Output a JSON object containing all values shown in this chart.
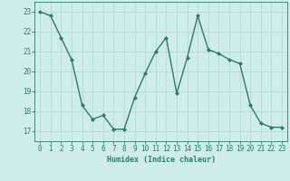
{
  "x": [
    0,
    1,
    2,
    3,
    4,
    5,
    6,
    7,
    8,
    9,
    10,
    11,
    12,
    13,
    14,
    15,
    16,
    17,
    18,
    19,
    20,
    21,
    22,
    23
  ],
  "y": [
    23.0,
    22.8,
    21.7,
    20.6,
    18.3,
    17.6,
    17.8,
    17.1,
    17.1,
    18.7,
    19.9,
    21.0,
    21.7,
    18.9,
    20.7,
    22.8,
    21.1,
    20.9,
    20.6,
    20.4,
    18.3,
    17.4,
    17.2,
    17.2
  ],
  "line_color": "#2d7a6e",
  "marker": "D",
  "marker_size": 2,
  "bg_color": "#ceecea",
  "grid_color": "#b8d8d6",
  "xlabel": "Humidex (Indice chaleur)",
  "xlim": [
    -0.5,
    23.5
  ],
  "ylim": [
    16.5,
    23.5
  ],
  "yticks": [
    17,
    18,
    19,
    20,
    21,
    22,
    23
  ],
  "xticks": [
    0,
    1,
    2,
    3,
    4,
    5,
    6,
    7,
    8,
    9,
    10,
    11,
    12,
    13,
    14,
    15,
    16,
    17,
    18,
    19,
    20,
    21,
    22,
    23
  ],
  "xlabel_fontsize": 6.0,
  "tick_fontsize": 5.5,
  "line_width": 1.0
}
